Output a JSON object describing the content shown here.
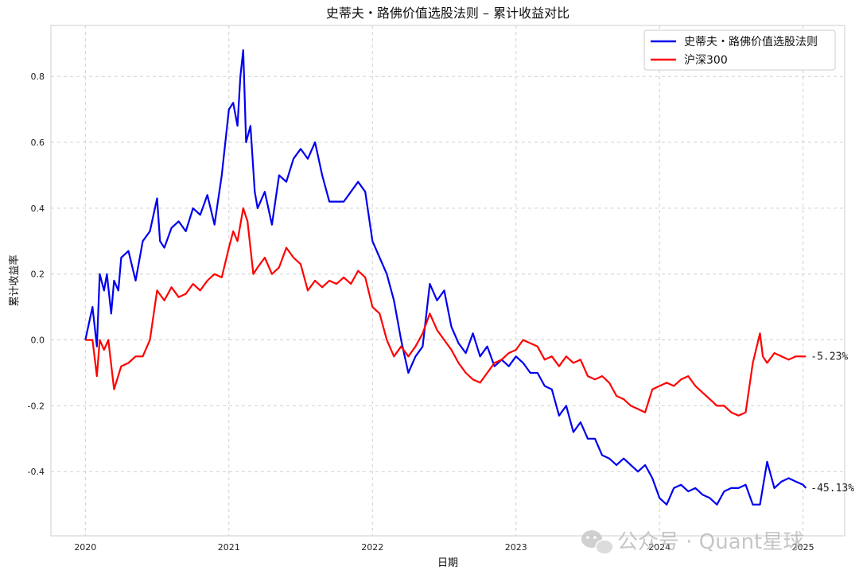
{
  "chart_data": {
    "type": "line",
    "title": "史蒂夫・路佛价值选股法则 – 累计收益对比",
    "xlabel": "日期",
    "ylabel": "累计收益率",
    "xlim": [
      2019.76,
      2025.29
    ],
    "ylim": [
      -0.595,
      0.955
    ],
    "x_ticks": [
      2020,
      2021,
      2022,
      2023,
      2024,
      2025
    ],
    "x_tick_labels": [
      "2020",
      "2021",
      "2022",
      "2023",
      "2024",
      "2025"
    ],
    "y_ticks": [
      -0.4,
      -0.2,
      0.0,
      0.2,
      0.4,
      0.6,
      0.8
    ],
    "y_tick_labels": [
      "-0.4",
      "-0.2",
      "0.0",
      "0.2",
      "0.4",
      "0.6",
      "0.8"
    ],
    "grid": true,
    "legend_position": "top-right",
    "series": [
      {
        "name": "史蒂夫・路佛价值选股法则",
        "color": "#0000ee",
        "end_label": "-45.13%",
        "x": [
          2020.0,
          2020.05,
          2020.08,
          2020.1,
          2020.13,
          2020.15,
          2020.18,
          2020.2,
          2020.23,
          2020.25,
          2020.3,
          2020.35,
          2020.4,
          2020.45,
          2020.5,
          2020.52,
          2020.55,
          2020.6,
          2020.65,
          2020.7,
          2020.75,
          2020.8,
          2020.85,
          2020.9,
          2020.95,
          2021.0,
          2021.03,
          2021.06,
          2021.08,
          2021.1,
          2021.12,
          2021.15,
          2021.18,
          2021.2,
          2021.25,
          2021.3,
          2021.35,
          2021.4,
          2021.45,
          2021.5,
          2021.55,
          2021.6,
          2021.65,
          2021.7,
          2021.75,
          2021.8,
          2021.85,
          2021.9,
          2021.95,
          2022.0,
          2022.05,
          2022.1,
          2022.15,
          2022.2,
          2022.25,
          2022.3,
          2022.35,
          2022.4,
          2022.45,
          2022.5,
          2022.55,
          2022.6,
          2022.65,
          2022.7,
          2022.75,
          2022.8,
          2022.85,
          2022.9,
          2022.95,
          2023.0,
          2023.05,
          2023.1,
          2023.15,
          2023.2,
          2023.25,
          2023.3,
          2023.35,
          2023.4,
          2023.45,
          2023.5,
          2023.55,
          2023.6,
          2023.65,
          2023.7,
          2023.75,
          2023.8,
          2023.85,
          2023.9,
          2023.95,
          2024.0,
          2024.05,
          2024.1,
          2024.15,
          2024.2,
          2024.25,
          2024.3,
          2024.35,
          2024.4,
          2024.45,
          2024.5,
          2024.55,
          2024.6,
          2024.65,
          2024.7,
          2024.75,
          2024.8,
          2024.85,
          2024.9,
          2024.95,
          2025.0,
          2025.02
        ],
        "values": [
          0.0,
          0.1,
          -0.02,
          0.2,
          0.15,
          0.2,
          0.08,
          0.18,
          0.15,
          0.25,
          0.27,
          0.18,
          0.3,
          0.33,
          0.43,
          0.3,
          0.28,
          0.34,
          0.36,
          0.33,
          0.4,
          0.38,
          0.44,
          0.35,
          0.5,
          0.7,
          0.72,
          0.65,
          0.8,
          0.88,
          0.6,
          0.65,
          0.45,
          0.4,
          0.45,
          0.35,
          0.5,
          0.48,
          0.55,
          0.58,
          0.55,
          0.6,
          0.5,
          0.42,
          0.42,
          0.42,
          0.45,
          0.48,
          0.45,
          0.3,
          0.25,
          0.2,
          0.12,
          0.0,
          -0.1,
          -0.05,
          -0.02,
          0.17,
          0.12,
          0.15,
          0.04,
          -0.01,
          -0.04,
          0.02,
          -0.05,
          -0.02,
          -0.08,
          -0.06,
          -0.08,
          -0.05,
          -0.07,
          -0.1,
          -0.1,
          -0.14,
          -0.15,
          -0.23,
          -0.2,
          -0.28,
          -0.25,
          -0.3,
          -0.3,
          -0.35,
          -0.36,
          -0.38,
          -0.36,
          -0.38,
          -0.4,
          -0.38,
          -0.42,
          -0.48,
          -0.5,
          -0.45,
          -0.44,
          -0.46,
          -0.45,
          -0.47,
          -0.48,
          -0.5,
          -0.46,
          -0.45,
          -0.45,
          -0.44,
          -0.5,
          -0.5,
          -0.37,
          -0.45,
          -0.43,
          -0.42,
          -0.43,
          -0.44,
          -0.45
        ]
      },
      {
        "name": "沪深300",
        "color": "#ff0000",
        "end_label": "-5.23%",
        "x": [
          2020.0,
          2020.05,
          2020.08,
          2020.1,
          2020.13,
          2020.16,
          2020.2,
          2020.25,
          2020.3,
          2020.35,
          2020.4,
          2020.45,
          2020.5,
          2020.55,
          2020.6,
          2020.65,
          2020.7,
          2020.75,
          2020.8,
          2020.85,
          2020.9,
          2020.95,
          2021.0,
          2021.03,
          2021.06,
          2021.1,
          2021.13,
          2021.17,
          2021.2,
          2021.25,
          2021.3,
          2021.35,
          2021.4,
          2021.45,
          2021.5,
          2021.55,
          2021.6,
          2021.65,
          2021.7,
          2021.75,
          2021.8,
          2021.85,
          2021.9,
          2021.95,
          2022.0,
          2022.05,
          2022.1,
          2022.15,
          2022.2,
          2022.25,
          2022.3,
          2022.35,
          2022.4,
          2022.45,
          2022.5,
          2022.55,
          2022.6,
          2022.65,
          2022.7,
          2022.75,
          2022.8,
          2022.85,
          2022.9,
          2022.95,
          2023.0,
          2023.05,
          2023.1,
          2023.15,
          2023.2,
          2023.25,
          2023.3,
          2023.35,
          2023.4,
          2023.45,
          2023.5,
          2023.55,
          2023.6,
          2023.65,
          2023.7,
          2023.75,
          2023.8,
          2023.85,
          2023.9,
          2023.95,
          2024.0,
          2024.05,
          2024.1,
          2024.15,
          2024.2,
          2024.25,
          2024.3,
          2024.35,
          2024.4,
          2024.45,
          2024.5,
          2024.55,
          2024.6,
          2024.65,
          2024.7,
          2024.72,
          2024.75,
          2024.8,
          2024.85,
          2024.9,
          2024.95,
          2025.0,
          2025.02
        ],
        "values": [
          0.0,
          0.0,
          -0.11,
          0.0,
          -0.03,
          0.0,
          -0.15,
          -0.08,
          -0.07,
          -0.05,
          -0.05,
          0.0,
          0.15,
          0.12,
          0.16,
          0.13,
          0.14,
          0.17,
          0.15,
          0.18,
          0.2,
          0.19,
          0.28,
          0.33,
          0.3,
          0.4,
          0.36,
          0.2,
          0.22,
          0.25,
          0.2,
          0.22,
          0.28,
          0.25,
          0.23,
          0.15,
          0.18,
          0.16,
          0.18,
          0.17,
          0.19,
          0.17,
          0.21,
          0.19,
          0.1,
          0.08,
          0.0,
          -0.05,
          -0.02,
          -0.05,
          -0.02,
          0.02,
          0.08,
          0.03,
          0.0,
          -0.03,
          -0.07,
          -0.1,
          -0.12,
          -0.13,
          -0.1,
          -0.07,
          -0.06,
          -0.04,
          -0.03,
          0.0,
          -0.01,
          -0.02,
          -0.06,
          -0.05,
          -0.08,
          -0.05,
          -0.07,
          -0.06,
          -0.11,
          -0.12,
          -0.11,
          -0.13,
          -0.17,
          -0.18,
          -0.2,
          -0.21,
          -0.22,
          -0.15,
          -0.14,
          -0.13,
          -0.14,
          -0.12,
          -0.11,
          -0.14,
          -0.16,
          -0.18,
          -0.2,
          -0.2,
          -0.22,
          -0.23,
          -0.22,
          -0.07,
          0.02,
          -0.05,
          -0.07,
          -0.04,
          -0.05,
          -0.06,
          -0.05,
          -0.05,
          -0.05
        ]
      }
    ]
  },
  "watermark": {
    "icon": "wechat-icon",
    "text": "公众号 · Quant星球"
  }
}
